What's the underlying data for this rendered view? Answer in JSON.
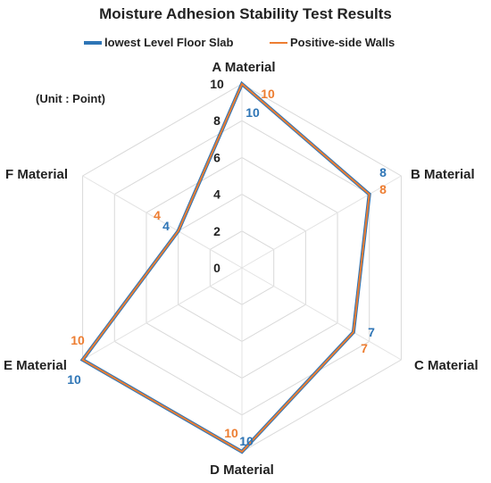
{
  "chart_data": {
    "type": "radar",
    "title": "Moisture Adhesion Stability Test Results",
    "unit_note": "(Unit : Point)",
    "categories": [
      "A Material",
      "B Material",
      "C Material",
      "D Material",
      "E Material",
      "F Material"
    ],
    "rlim": [
      0,
      10
    ],
    "ticks": [
      "0",
      "2",
      "4",
      "6",
      "8",
      "10"
    ],
    "grid": true,
    "legend_position": "top",
    "series": [
      {
        "name": "lowest Level Floor Slab",
        "color": "#2E75B6",
        "values": [
          10,
          8,
          7,
          10,
          10,
          4
        ]
      },
      {
        "name": "Positive-side Walls",
        "color": "#ED7D31",
        "values": [
          10,
          8,
          7,
          10,
          10,
          4
        ]
      }
    ]
  }
}
